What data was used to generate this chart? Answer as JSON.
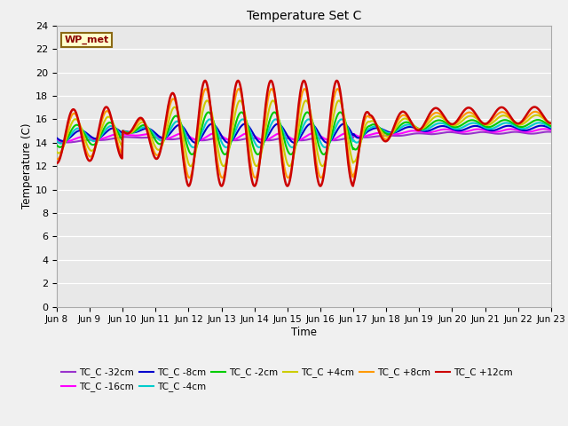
{
  "title": "Temperature Set C",
  "xlabel": "Time",
  "ylabel": "Temperature (C)",
  "ylim": [
    0,
    24
  ],
  "yticks": [
    0,
    2,
    4,
    6,
    8,
    10,
    12,
    14,
    16,
    18,
    20,
    22,
    24
  ],
  "bg_color": "#e8e8e8",
  "fig_color": "#f0f0f0",
  "annotation_text": "WP_met",
  "annotation_bg": "#ffffcc",
  "annotation_border": "#8b6914",
  "series": [
    {
      "label": "TC_C -32cm",
      "color": "#9933cc",
      "depth": -32
    },
    {
      "label": "TC_C -16cm",
      "color": "#ff00ff",
      "depth": -16
    },
    {
      "label": "TC_C -8cm",
      "color": "#0000cc",
      "depth": -8
    },
    {
      "label": "TC_C -4cm",
      "color": "#00cccc",
      "depth": -4
    },
    {
      "label": "TC_C -2cm",
      "color": "#00cc00",
      "depth": -2
    },
    {
      "label": "TC_C +4cm",
      "color": "#cccc00",
      "depth": 4
    },
    {
      "label": "TC_C +8cm",
      "color": "#ff9900",
      "depth": 8
    },
    {
      "label": "TC_C +12cm",
      "color": "#cc0000",
      "depth": 12
    }
  ],
  "xtick_labels": [
    "Jun 8",
    "Jun 9",
    "Jun 10",
    "Jun 11",
    "Jun 12",
    "Jun 13",
    "Jun 14",
    "Jun 15",
    "Jun 16",
    "Jun 17",
    "Jun 18",
    "Jun 19",
    "Jun 20",
    "Jun 21",
    "Jun 22",
    "Jun 23"
  ],
  "n_days": 15,
  "pts_per_day": 48
}
